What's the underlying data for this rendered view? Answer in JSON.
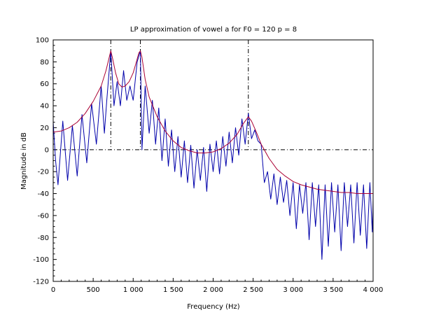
{
  "chart_data": {
    "type": "line",
    "title": "LP approximation of vowel a for F0 = 120 p = 8",
    "xlabel": "Frequency (Hz)",
    "ylabel": "Magnitude in dB",
    "xlim": [
      0,
      4000
    ],
    "ylim": [
      -120,
      100
    ],
    "x_ticks": [
      0,
      500,
      1000,
      1500,
      2000,
      2500,
      3000,
      3500,
      4000
    ],
    "x_tick_labels": [
      "0",
      "500",
      "1 000",
      "1 500",
      "2 000",
      "2 500",
      "3 000",
      "3 500",
      "4 000"
    ],
    "y_ticks": [
      -120,
      -100,
      -80,
      -60,
      -40,
      -20,
      0,
      20,
      40,
      60,
      80,
      100
    ],
    "y_tick_labels": [
      "-120",
      "-100",
      "-80",
      "-60",
      "-40",
      "-20",
      "0",
      "20",
      "40",
      "60",
      "80",
      "100"
    ],
    "grid": false,
    "zero_line": {
      "y": 0,
      "style": "dash-dot",
      "color": "#000000"
    },
    "formant_markers": [
      720,
      1090,
      2440
    ],
    "series": [
      {
        "role": "spectrum",
        "color": "#0000aa",
        "harmonic_spacing_hz": 120,
        "points": [
          [
            0,
            25
          ],
          [
            30,
            -10
          ],
          [
            60,
            -32
          ],
          [
            120,
            26
          ],
          [
            180,
            -28
          ],
          [
            240,
            22
          ],
          [
            300,
            -24
          ],
          [
            360,
            32
          ],
          [
            420,
            -12
          ],
          [
            480,
            42
          ],
          [
            540,
            5
          ],
          [
            600,
            58
          ],
          [
            640,
            15
          ],
          [
            670,
            45
          ],
          [
            720,
            90
          ],
          [
            760,
            40
          ],
          [
            800,
            62
          ],
          [
            840,
            40
          ],
          [
            880,
            72
          ],
          [
            920,
            45
          ],
          [
            960,
            58
          ],
          [
            1000,
            45
          ],
          [
            1050,
            80
          ],
          [
            1090,
            90
          ],
          [
            1110,
            0
          ],
          [
            1150,
            58
          ],
          [
            1200,
            15
          ],
          [
            1240,
            45
          ],
          [
            1280,
            5
          ],
          [
            1320,
            38
          ],
          [
            1360,
            -10
          ],
          [
            1400,
            28
          ],
          [
            1440,
            -15
          ],
          [
            1480,
            18
          ],
          [
            1520,
            -20
          ],
          [
            1560,
            12
          ],
          [
            1600,
            -25
          ],
          [
            1640,
            8
          ],
          [
            1680,
            -30
          ],
          [
            1720,
            4
          ],
          [
            1760,
            -35
          ],
          [
            1800,
            0
          ],
          [
            1840,
            -28
          ],
          [
            1880,
            2
          ],
          [
            1920,
            -38
          ],
          [
            1960,
            5
          ],
          [
            2000,
            -20
          ],
          [
            2040,
            8
          ],
          [
            2080,
            -22
          ],
          [
            2120,
            12
          ],
          [
            2160,
            -15
          ],
          [
            2200,
            16
          ],
          [
            2240,
            -12
          ],
          [
            2280,
            20
          ],
          [
            2320,
            -5
          ],
          [
            2360,
            28
          ],
          [
            2400,
            5
          ],
          [
            2440,
            33
          ],
          [
            2480,
            10
          ],
          [
            2520,
            18
          ],
          [
            2560,
            8
          ],
          [
            2600,
            5
          ],
          [
            2640,
            -30
          ],
          [
            2680,
            -20
          ],
          [
            2720,
            -45
          ],
          [
            2760,
            -22
          ],
          [
            2800,
            -50
          ],
          [
            2840,
            -25
          ],
          [
            2880,
            -48
          ],
          [
            2920,
            -28
          ],
          [
            2960,
            -60
          ],
          [
            3000,
            -30
          ],
          [
            3040,
            -72
          ],
          [
            3080,
            -32
          ],
          [
            3120,
            -58
          ],
          [
            3160,
            -30
          ],
          [
            3200,
            -82
          ],
          [
            3240,
            -30
          ],
          [
            3280,
            -70
          ],
          [
            3320,
            -32
          ],
          [
            3360,
            -100
          ],
          [
            3400,
            -32
          ],
          [
            3440,
            -88
          ],
          [
            3480,
            -30
          ],
          [
            3520,
            -75
          ],
          [
            3560,
            -32
          ],
          [
            3600,
            -92
          ],
          [
            3640,
            -30
          ],
          [
            3680,
            -70
          ],
          [
            3720,
            -32
          ],
          [
            3760,
            -85
          ],
          [
            3800,
            -30
          ],
          [
            3840,
            -78
          ],
          [
            3880,
            -32
          ],
          [
            3920,
            -90
          ],
          [
            3960,
            -30
          ],
          [
            3990,
            -75
          ],
          [
            4000,
            -45
          ]
        ]
      },
      {
        "role": "lp-envelope",
        "color": "#aa0033",
        "points": [
          [
            0,
            16
          ],
          [
            100,
            17
          ],
          [
            200,
            20
          ],
          [
            300,
            25
          ],
          [
            400,
            33
          ],
          [
            500,
            44
          ],
          [
            600,
            58
          ],
          [
            660,
            72
          ],
          [
            700,
            84
          ],
          [
            720,
            90
          ],
          [
            740,
            84
          ],
          [
            780,
            70
          ],
          [
            820,
            60
          ],
          [
            860,
            57
          ],
          [
            900,
            58
          ],
          [
            950,
            62
          ],
          [
            1000,
            70
          ],
          [
            1040,
            80
          ],
          [
            1070,
            88
          ],
          [
            1090,
            90
          ],
          [
            1110,
            84
          ],
          [
            1150,
            64
          ],
          [
            1200,
            48
          ],
          [
            1300,
            30
          ],
          [
            1400,
            17
          ],
          [
            1500,
            8
          ],
          [
            1600,
            2
          ],
          [
            1700,
            -1
          ],
          [
            1800,
            -3
          ],
          [
            1900,
            -3
          ],
          [
            2000,
            -2
          ],
          [
            2100,
            1
          ],
          [
            2200,
            6
          ],
          [
            2300,
            14
          ],
          [
            2380,
            24
          ],
          [
            2440,
            30
          ],
          [
            2480,
            26
          ],
          [
            2540,
            16
          ],
          [
            2600,
            5
          ],
          [
            2700,
            -8
          ],
          [
            2800,
            -18
          ],
          [
            2900,
            -24
          ],
          [
            3000,
            -29
          ],
          [
            3100,
            -32
          ],
          [
            3200,
            -34
          ],
          [
            3300,
            -36
          ],
          [
            3400,
            -37
          ],
          [
            3500,
            -38
          ],
          [
            3600,
            -39
          ],
          [
            3700,
            -39
          ],
          [
            3800,
            -40
          ],
          [
            3900,
            -40
          ],
          [
            4000,
            -40
          ]
        ]
      }
    ]
  }
}
